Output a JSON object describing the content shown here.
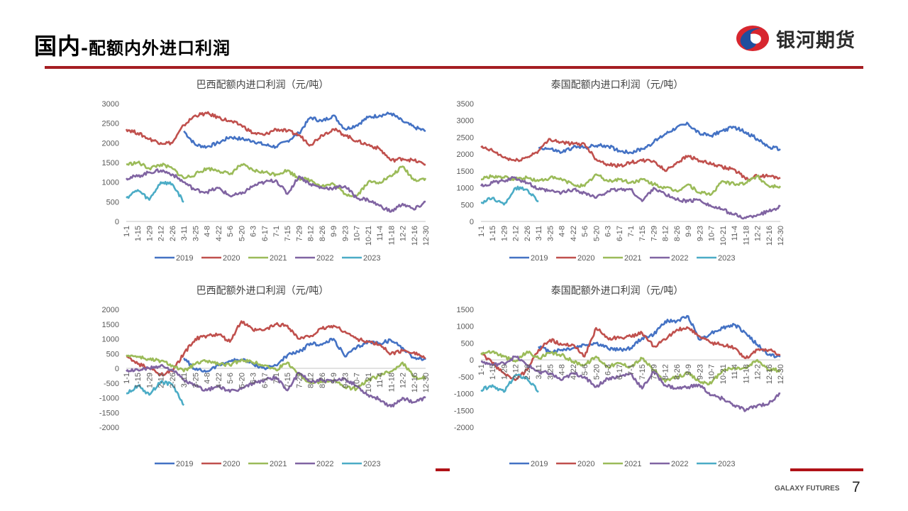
{
  "header": {
    "title_main": "国内",
    "title_sub": "-配额内外进口利润",
    "logo_text": "银河期货"
  },
  "footer": {
    "brand": "GALAXY FUTURES",
    "page_number": "7"
  },
  "colors": {
    "accent": "#a51e22",
    "2019": "#4472c4",
    "2020": "#c0504d",
    "2021": "#9bbb59",
    "2022": "#8064a2",
    "2023": "#4bacc6",
    "axis": "#d9d9d9"
  },
  "chart_data": [
    {
      "id": "brazil-in-quota",
      "type": "line",
      "title": "巴西配额内进口利润（元/吨）",
      "xlabel": "",
      "ylabel": "",
      "ylim": [
        0,
        3000
      ],
      "yticks": [
        0,
        500,
        1000,
        1500,
        2000,
        2500,
        3000
      ],
      "categories": [
        "1-1",
        "1-15",
        "1-29",
        "2-12",
        "2-26",
        "3-11",
        "3-25",
        "4-8",
        "4-22",
        "5-6",
        "5-20",
        "6-3",
        "6-17",
        "7-1",
        "7-15",
        "7-29",
        "8-12",
        "8-26",
        "9-9",
        "9-23",
        "10-7",
        "10-21",
        "11-4",
        "11-18",
        "12-2",
        "12-16",
        "12-30"
      ],
      "legend": "bottom",
      "series": [
        {
          "name": "2019",
          "values": [
            null,
            null,
            null,
            null,
            null,
            2300,
            1950,
            1900,
            2000,
            2150,
            2100,
            2050,
            1950,
            1900,
            2050,
            2250,
            2650,
            2550,
            2700,
            2350,
            2450,
            2650,
            2700,
            2750,
            2550,
            2400,
            2300
          ]
        },
        {
          "name": "2020",
          "values": [
            2350,
            2250,
            2100,
            2000,
            2000,
            2450,
            2700,
            2750,
            2650,
            2550,
            2450,
            2250,
            2200,
            2350,
            2300,
            2200,
            1950,
            2200,
            2350,
            2200,
            2050,
            1950,
            1850,
            1550,
            1600,
            1550,
            1450
          ]
        },
        {
          "name": "2021",
          "values": [
            1450,
            1500,
            1350,
            1450,
            1350,
            1100,
            1200,
            1350,
            1300,
            1200,
            1450,
            1300,
            1250,
            1200,
            1300,
            1100,
            1050,
            900,
            950,
            700,
            650,
            1000,
            1000,
            1150,
            1400,
            1050,
            1100
          ]
        },
        {
          "name": "2022",
          "values": [
            1100,
            1150,
            1250,
            1300,
            1200,
            1000,
            800,
            750,
            850,
            650,
            700,
            900,
            1000,
            1050,
            700,
            1150,
            950,
            850,
            850,
            900,
            600,
            550,
            400,
            250,
            450,
            300,
            500
          ]
        },
        {
          "name": "2023",
          "values": [
            600,
            800,
            550,
            1000,
            950,
            500,
            null,
            null,
            null,
            null,
            null,
            null,
            null,
            null,
            null,
            null,
            null,
            null,
            null,
            null,
            null,
            null,
            null,
            null,
            null,
            null,
            null
          ]
        }
      ]
    },
    {
      "id": "thailand-in-quota",
      "type": "line",
      "title": "泰国配额内进口利润（元/吨）",
      "xlabel": "",
      "ylabel": "",
      "ylim": [
        0,
        3500
      ],
      "yticks": [
        0,
        500,
        1000,
        1500,
        2000,
        2500,
        3000,
        3500
      ],
      "categories": [
        "1-1",
        "1-15",
        "1-29",
        "2-12",
        "2-26",
        "3-11",
        "3-25",
        "4-8",
        "4-22",
        "5-6",
        "5-20",
        "6-3",
        "6-17",
        "7-1",
        "7-15",
        "7-29",
        "8-12",
        "8-26",
        "9-9",
        "9-23",
        "10-7",
        "10-21",
        "11-4",
        "11-18",
        "12-2",
        "12-16",
        "12-30"
      ],
      "legend": "bottom",
      "series": [
        {
          "name": "2019",
          "values": [
            null,
            null,
            null,
            null,
            null,
            2200,
            2150,
            2050,
            2200,
            2200,
            2250,
            2250,
            2100,
            2050,
            2150,
            2350,
            2600,
            2800,
            2900,
            2600,
            2550,
            2700,
            2800,
            2650,
            2450,
            2200,
            2150
          ]
        },
        {
          "name": "2020",
          "values": [
            2200,
            2100,
            1900,
            1800,
            1900,
            2100,
            2450,
            2350,
            2300,
            2300,
            1850,
            1700,
            1650,
            1750,
            1800,
            1800,
            1500,
            1750,
            1950,
            1800,
            1700,
            1600,
            1550,
            1250,
            1350,
            1350,
            1300
          ]
        },
        {
          "name": "2021",
          "values": [
            1250,
            1350,
            1300,
            1250,
            1300,
            1200,
            1300,
            1250,
            1100,
            1050,
            1400,
            1200,
            1250,
            1150,
            1250,
            1100,
            1000,
            900,
            1100,
            850,
            800,
            1200,
            1100,
            1150,
            1350,
            1050,
            1050
          ]
        },
        {
          "name": "2022",
          "values": [
            1050,
            1150,
            1200,
            1300,
            1150,
            950,
            900,
            850,
            950,
            850,
            700,
            900,
            950,
            950,
            600,
            1000,
            800,
            650,
            600,
            650,
            450,
            350,
            200,
            100,
            200,
            300,
            450
          ]
        },
        {
          "name": "2023",
          "values": [
            550,
            700,
            500,
            1000,
            950,
            600,
            null,
            null,
            null,
            null,
            null,
            null,
            null,
            null,
            null,
            null,
            null,
            null,
            null,
            null,
            null,
            null,
            null,
            null,
            null,
            null,
            null
          ]
        }
      ]
    },
    {
      "id": "brazil-out-quota",
      "type": "line",
      "title": "巴西配额外进口利润（元/吨）",
      "xlabel": "",
      "ylabel": "",
      "ylim": [
        -2000,
        2000
      ],
      "yticks": [
        -2000,
        -1500,
        -1000,
        -500,
        0,
        500,
        1000,
        1500,
        2000
      ],
      "categories": [
        "1-1",
        "1-15",
        "1-29",
        "2-12",
        "2-26",
        "3-11",
        "3-25",
        "4-8",
        "4-22",
        "5-6",
        "5-20",
        "6-3",
        "6-17",
        "7-1",
        "7-15",
        "7-29",
        "8-12",
        "8-26",
        "9-9",
        "9-23",
        "10-7",
        "10-21",
        "11-4",
        "11-18",
        "12-2",
        "12-16",
        "12-30"
      ],
      "legend": "bottom",
      "series": [
        {
          "name": "2019",
          "values": [
            null,
            null,
            null,
            null,
            null,
            350,
            -50,
            -100,
            100,
            250,
            300,
            150,
            0,
            100,
            450,
            550,
            850,
            800,
            1000,
            400,
            700,
            900,
            850,
            950,
            700,
            350,
            300
          ]
        },
        {
          "name": "2020",
          "values": [
            400,
            150,
            0,
            -200,
            -100,
            500,
            1000,
            1100,
            1150,
            900,
            1600,
            1300,
            1300,
            1500,
            1450,
            1000,
            1100,
            1350,
            1450,
            1250,
            1000,
            900,
            800,
            500,
            600,
            550,
            350
          ]
        },
        {
          "name": "2021",
          "values": [
            450,
            400,
            300,
            250,
            100,
            -100,
            150,
            250,
            150,
            100,
            300,
            200,
            100,
            -50,
            200,
            -200,
            -500,
            -450,
            -400,
            -650,
            -700,
            -400,
            -250,
            -100,
            200,
            -300,
            -300
          ]
        },
        {
          "name": "2022",
          "values": [
            -100,
            -50,
            0,
            100,
            -50,
            -400,
            -600,
            -750,
            -600,
            -800,
            -700,
            -500,
            -400,
            -300,
            -750,
            -150,
            -450,
            -400,
            -450,
            -350,
            -600,
            -900,
            -1050,
            -1300,
            -1000,
            -1150,
            -1000
          ]
        },
        {
          "name": "2023",
          "values": [
            -850,
            -600,
            -900,
            -450,
            -550,
            -1250,
            null,
            null,
            null,
            null,
            null,
            null,
            null,
            null,
            null,
            null,
            null,
            null,
            null,
            null,
            null,
            null,
            null,
            null,
            null,
            null,
            null
          ]
        }
      ]
    },
    {
      "id": "thailand-out-quota",
      "type": "line",
      "title": "泰国配额外进口利润（元/吨）",
      "xlabel": "",
      "ylabel": "",
      "ylim": [
        -2000,
        1500
      ],
      "yticks": [
        -2000,
        -1500,
        -1000,
        -500,
        0,
        500,
        1000,
        1500
      ],
      "categories": [
        "1-1",
        "1-15",
        "1-29",
        "2-12",
        "2-26",
        "3-11",
        "3-25",
        "4-8",
        "4-22",
        "5-6",
        "5-20",
        "6-3",
        "6-17",
        "7-1",
        "7-15",
        "7-29",
        "8-12",
        "8-26",
        "9-9",
        "9-23",
        "10-7",
        "10-21",
        "11-4",
        "11-18",
        "12-2",
        "12-16",
        "12-30"
      ],
      "legend": "bottom",
      "series": [
        {
          "name": "2019",
          "values": [
            null,
            null,
            null,
            null,
            null,
            400,
            250,
            300,
            350,
            450,
            500,
            350,
            300,
            350,
            650,
            750,
            1150,
            1150,
            1300,
            600,
            800,
            950,
            1050,
            800,
            450,
            150,
            100
          ]
        },
        {
          "name": "2020",
          "values": [
            200,
            -100,
            -400,
            -600,
            -300,
            300,
            600,
            450,
            450,
            100,
            950,
            650,
            650,
            700,
            800,
            400,
            600,
            900,
            950,
            700,
            500,
            450,
            350,
            50,
            300,
            300,
            150
          ]
        },
        {
          "name": "2021",
          "values": [
            200,
            250,
            100,
            -50,
            250,
            50,
            200,
            150,
            -50,
            -150,
            100,
            -200,
            -100,
            -200,
            50,
            -300,
            -650,
            -500,
            -400,
            -650,
            -700,
            -300,
            -250,
            -250,
            0,
            -300,
            -300
          ]
        },
        {
          "name": "2022",
          "values": [
            -50,
            -150,
            -100,
            100,
            -150,
            -350,
            -400,
            -600,
            -400,
            -500,
            -800,
            -550,
            -500,
            -400,
            -850,
            -350,
            -750,
            -850,
            -800,
            -750,
            -1050,
            -1150,
            -1350,
            -1500,
            -1350,
            -1300,
            -1000
          ]
        },
        {
          "name": "2023",
          "values": [
            -900,
            -750,
            -950,
            -450,
            -550,
            -950,
            null,
            null,
            null,
            null,
            null,
            null,
            null,
            null,
            null,
            null,
            null,
            null,
            null,
            null,
            null,
            null,
            null,
            null,
            null,
            null,
            null
          ]
        }
      ]
    }
  ]
}
